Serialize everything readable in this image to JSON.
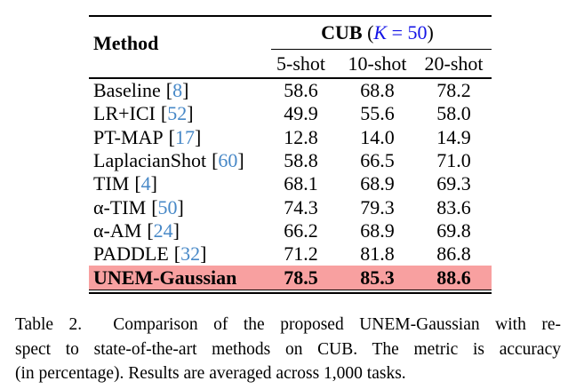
{
  "table": {
    "bracket_open": "[",
    "bracket_close": "]",
    "header": {
      "method_label": "Method",
      "group_name": "CUB",
      "paren_open": "(",
      "k_var": "K",
      "k_rest": " = 50",
      "paren_close": ")",
      "columns": [
        "5-shot",
        "10-shot",
        "20-shot"
      ]
    },
    "rows": [
      {
        "method": "Baseline",
        "cite": "8",
        "values": [
          "58.6",
          "68.8",
          "78.2"
        ]
      },
      {
        "method": "LR+ICI",
        "cite": "52",
        "values": [
          "49.9",
          "55.6",
          "58.0"
        ]
      },
      {
        "method": "PT-MAP",
        "cite": "17",
        "values": [
          "12.8",
          "14.0",
          "14.9"
        ]
      },
      {
        "method": "LaplacianShot",
        "cite": "60",
        "values": [
          "58.8",
          "66.5",
          "71.0"
        ]
      },
      {
        "method": "TIM",
        "cite": "4",
        "values": [
          "68.1",
          "68.9",
          "69.3"
        ]
      },
      {
        "method": "α-TIM",
        "cite": "50",
        "values": [
          "74.3",
          "79.3",
          "83.6"
        ]
      },
      {
        "method": "α-AM",
        "cite": "24",
        "values": [
          "66.2",
          "68.9",
          "69.8"
        ]
      },
      {
        "method": "PADDLE",
        "cite": "32",
        "values": [
          "71.2",
          "81.8",
          "86.8"
        ]
      },
      {
        "method": "UNEM-Gaussian",
        "cite": "",
        "values": [
          "78.5",
          "85.3",
          "88.6"
        ],
        "highlight": true
      }
    ],
    "colors": {
      "highlight_row": "#F8A0A0",
      "citation_blue": "#4788C7",
      "math_blue": "#1414E6",
      "text": "#000000"
    }
  },
  "caption": {
    "lines": [
      "Table 2.  Comparison of the proposed UNEM-Gaussian with re-",
      "spect to state-of-the-art methods on CUB. The metric is accuracy",
      "(in percentage). Results are averaged across 1,000 tasks."
    ]
  }
}
